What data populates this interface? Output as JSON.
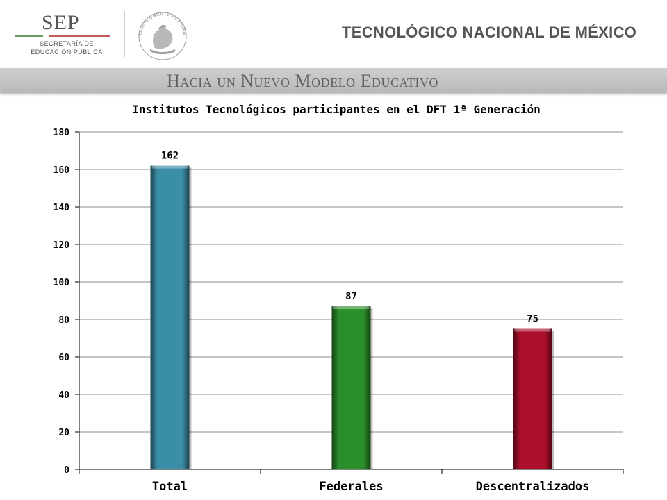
{
  "header": {
    "sep_logo": {
      "name": "SEP",
      "line1": "SECRETARÍA DE",
      "line2": "EDUCACIÓN PÚBLICA"
    },
    "seal_text": "ESTADOS UNIDOS MEXICANOS",
    "institution": "TECNOLÓGICO NACIONAL DE MÉXICO",
    "band_text": "Hacia un Nuevo Modelo Educativo"
  },
  "colors": {
    "band": "#c4c4c4",
    "grid": "#8c8c8c",
    "sep_green": "#6d9a6a",
    "sep_red": "#c25a5a"
  },
  "chart_data": {
    "type": "bar",
    "title": "Institutos Tecnológicos participantes en el DFT 1ª Generación",
    "xlabel": "",
    "ylabel": "",
    "categories": [
      "Total",
      "Federales",
      "Descentralizados"
    ],
    "values": [
      162,
      87,
      75
    ],
    "data_labels": [
      "162",
      "87",
      "75"
    ],
    "bar_colors": [
      "#3a8ea8",
      "#2a8f2a",
      "#ad0f2a"
    ],
    "ylim": [
      0,
      180
    ],
    "yticks": [
      0,
      20,
      40,
      60,
      80,
      100,
      120,
      140,
      160,
      180
    ],
    "grid": true,
    "legend": "none"
  }
}
